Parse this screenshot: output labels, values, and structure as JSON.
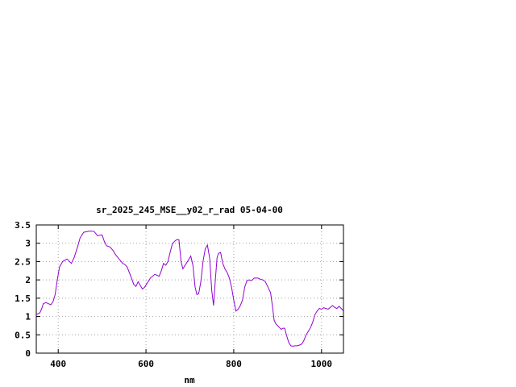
{
  "chart_data": {
    "type": "line",
    "title": "sr_2025_245_MSE__y02_r_rad 05-04-00",
    "xlabel": "nm",
    "ylabel": "",
    "xlim": [
      350,
      1050
    ],
    "ylim": [
      0,
      3.5
    ],
    "x_ticks": [
      400,
      600,
      800,
      1000
    ],
    "x_tick_labels": [
      "400",
      "600",
      "800",
      "1000"
    ],
    "y_ticks": [
      0,
      0.5,
      1,
      1.5,
      2,
      2.5,
      3,
      3.5
    ],
    "y_tick_labels": [
      "0",
      "0.5",
      "1",
      "1.5",
      "2",
      "2.5",
      "3",
      "3.5"
    ],
    "grid": true,
    "series": [
      {
        "color": "#9400d3",
        "x": [
          350,
          358,
          362,
          366,
          372,
          378,
          383,
          388,
          393,
          398,
          403,
          410,
          420,
          430,
          436,
          444,
          450,
          458,
          470,
          478,
          482,
          490,
          495,
          500,
          505,
          510,
          518,
          525,
          530,
          540,
          547,
          552,
          557,
          562,
          567,
          572,
          577,
          582,
          587,
          592,
          597,
          602,
          610,
          620,
          630,
          635,
          640,
          645,
          650,
          655,
          660,
          665,
          670,
          675,
          680,
          684,
          688,
          692,
          697,
          702,
          707,
          712,
          716,
          720,
          725,
          730,
          735,
          740,
          745,
          750,
          754,
          758,
          762,
          765,
          770,
          775,
          780,
          785,
          790,
          795,
          800,
          805,
          810,
          815,
          820,
          825,
          830,
          835,
          840,
          847,
          855,
          860,
          866,
          872,
          878,
          884,
          888,
          892,
          896,
          900,
          904,
          908,
          912,
          916,
          920,
          925,
          930,
          935,
          940,
          945,
          950,
          955,
          960,
          965,
          970,
          975,
          980,
          985,
          990,
          995,
          1000,
          1005,
          1010,
          1015,
          1020,
          1025,
          1030,
          1035,
          1040,
          1045,
          1050
        ],
        "values": [
          1.05,
          1.1,
          1.2,
          1.35,
          1.38,
          1.35,
          1.32,
          1.4,
          1.6,
          2.0,
          2.35,
          2.5,
          2.57,
          2.45,
          2.6,
          2.9,
          3.15,
          3.3,
          3.33,
          3.33,
          3.32,
          3.2,
          3.22,
          3.23,
          3.05,
          2.93,
          2.9,
          2.8,
          2.7,
          2.55,
          2.45,
          2.42,
          2.35,
          2.2,
          2.05,
          1.88,
          1.82,
          1.95,
          1.85,
          1.75,
          1.8,
          1.9,
          2.05,
          2.15,
          2.1,
          2.25,
          2.45,
          2.4,
          2.5,
          2.75,
          2.98,
          3.05,
          3.1,
          3.1,
          2.5,
          2.3,
          2.38,
          2.45,
          2.55,
          2.65,
          2.4,
          1.8,
          1.6,
          1.62,
          1.95,
          2.5,
          2.85,
          2.95,
          2.6,
          1.7,
          1.3,
          2.0,
          2.6,
          2.72,
          2.75,
          2.45,
          2.3,
          2.2,
          2.05,
          1.8,
          1.45,
          1.15,
          1.2,
          1.3,
          1.45,
          1.8,
          1.98,
          2.0,
          1.98,
          2.05,
          2.05,
          2.02,
          2.0,
          1.95,
          1.8,
          1.65,
          1.3,
          0.9,
          0.8,
          0.75,
          0.7,
          0.65,
          0.68,
          0.68,
          0.5,
          0.3,
          0.2,
          0.19,
          0.2,
          0.2,
          0.22,
          0.25,
          0.35,
          0.5,
          0.6,
          0.7,
          0.85,
          1.05,
          1.15,
          1.22,
          1.2,
          1.24,
          1.22,
          1.2,
          1.25,
          1.3,
          1.25,
          1.22,
          1.28,
          1.22,
          1.15
        ]
      }
    ]
  }
}
